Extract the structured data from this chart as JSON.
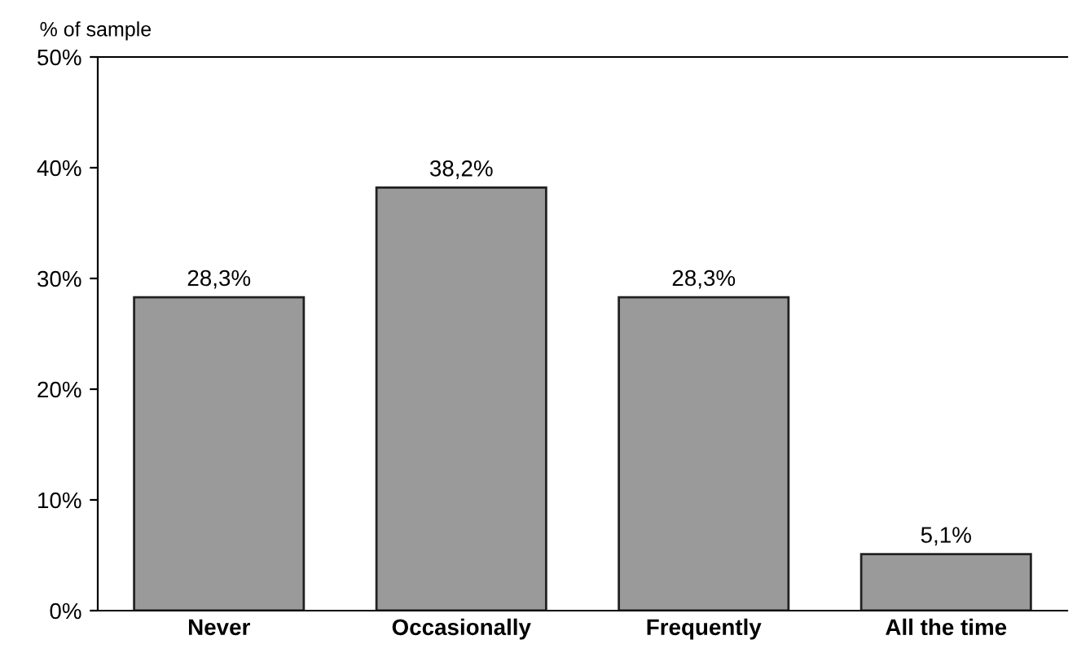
{
  "chart_data": {
    "type": "bar",
    "ylabel": "% of sample",
    "categories": [
      "Never",
      "Occasionally",
      "Frequently",
      "All the time"
    ],
    "values": [
      28.3,
      38.2,
      28.3,
      5.1
    ],
    "value_labels": [
      "28,3%",
      "38,2%",
      "28,3%",
      "5,1%"
    ],
    "color": "#9a9a9a",
    "ylim": [
      0,
      50
    ],
    "yticks": [
      {
        "value": 0,
        "label": "0%"
      },
      {
        "value": 10,
        "label": "10%"
      },
      {
        "value": 20,
        "label": "20%"
      },
      {
        "value": 30,
        "label": "30%"
      },
      {
        "value": 40,
        "label": "40%"
      },
      {
        "value": 50,
        "label": "50%"
      }
    ],
    "grid": false,
    "legend": false
  }
}
